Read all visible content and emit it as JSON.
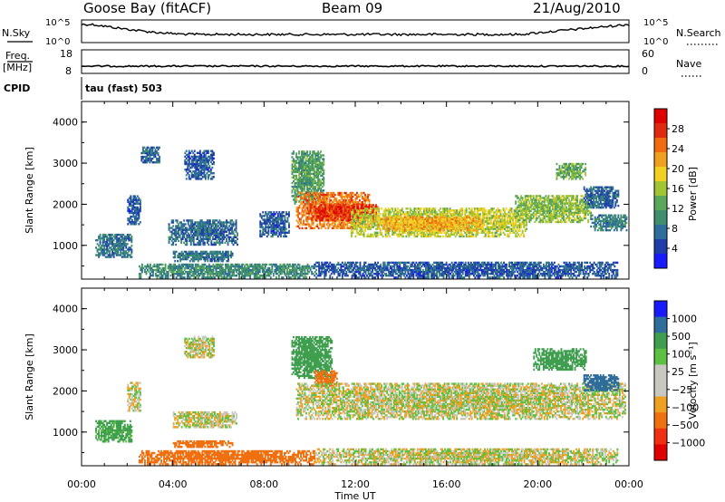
{
  "header": {
    "station": "Goose Bay (fitACF)",
    "beam": "Beam 09",
    "date": "21/Aug/2010"
  },
  "top_panels": {
    "nsky_label": "N.Sky",
    "nsearch_label": "N.Search",
    "nsky_ticks": [
      "10^5",
      "10^0"
    ],
    "nsearch_ticks": [
      "10^5",
      "10^0"
    ],
    "freq_label": "Freq.",
    "freq_unit": "[MHz]",
    "freq_ticks": [
      "18",
      "8"
    ],
    "nave_label": "Nave",
    "nave_ticks": [
      "60",
      "0"
    ],
    "cpid_label": "CPID",
    "cpid_value": "tau (fast) 503"
  },
  "colors": {
    "power_scale": [
      "#1a1aff",
      "#1f3ea8",
      "#2f6d9a",
      "#3f8f6e",
      "#5aa75a",
      "#a0c434",
      "#f0d020",
      "#f0a020",
      "#f06a10",
      "#e02a10",
      "#e00000"
    ],
    "velocity_scale": [
      "#e00000",
      "#f03010",
      "#f07010",
      "#f0a020",
      "#c8c8c0",
      "#c8c8c0",
      "#5cc040",
      "#3f9f4f",
      "#2f6d9a",
      "#1a1aff"
    ]
  },
  "chart_data": [
    {
      "type": "heatmap",
      "name": "power",
      "ylabel": "Slant Range [km]",
      "xlabel": "Time UT",
      "xticks": [
        "00:00",
        "04:00",
        "08:00",
        "12:00",
        "16:00",
        "20:00",
        "00:00"
      ],
      "yticks": [
        "1000",
        "2000",
        "3000",
        "4000"
      ],
      "xlim": [
        0,
        24
      ],
      "ylim": [
        180,
        4500
      ],
      "colorbar": {
        "label": "Power [dB]",
        "ticks": [
          "4",
          "8",
          "12",
          "16",
          "20",
          "24",
          "28"
        ],
        "range": [
          0,
          32
        ]
      },
      "regions": [
        {
          "t0": 0.6,
          "t1": 2.2,
          "r0": 700,
          "r1": 1250,
          "level": 8
        },
        {
          "t0": 2.0,
          "t1": 2.6,
          "r0": 1500,
          "r1": 2200,
          "level": 6
        },
        {
          "t0": 2.6,
          "t1": 3.4,
          "r0": 3000,
          "r1": 3400,
          "level": 7
        },
        {
          "t0": 4.5,
          "t1": 5.8,
          "r0": 2600,
          "r1": 3300,
          "level": 6
        },
        {
          "t0": 3.8,
          "t1": 6.8,
          "r0": 1000,
          "r1": 1600,
          "level": 7
        },
        {
          "t0": 4.0,
          "t1": 6.6,
          "r0": 600,
          "r1": 850,
          "level": 8
        },
        {
          "t0": 2.5,
          "t1": 10.2,
          "r0": 200,
          "r1": 560,
          "level": 10
        },
        {
          "t0": 7.8,
          "t1": 9.1,
          "r0": 1200,
          "r1": 1800,
          "level": 6
        },
        {
          "t0": 9.2,
          "t1": 10.6,
          "r0": 2000,
          "r1": 3300,
          "level": 12
        },
        {
          "t0": 9.4,
          "t1": 12.6,
          "r0": 1400,
          "r1": 2300,
          "level": 24
        },
        {
          "t0": 10.0,
          "t1": 13.0,
          "r0": 1600,
          "r1": 2000,
          "level": 28
        },
        {
          "t0": 11.8,
          "t1": 19.5,
          "r0": 1200,
          "r1": 1900,
          "level": 17
        },
        {
          "t0": 13.0,
          "t1": 17.5,
          "r0": 1350,
          "r1": 1700,
          "level": 21
        },
        {
          "t0": 19.0,
          "t1": 22.3,
          "r0": 1550,
          "r1": 2200,
          "level": 15
        },
        {
          "t0": 22.3,
          "t1": 23.9,
          "r0": 1350,
          "r1": 1750,
          "level": 9
        },
        {
          "t0": 20.8,
          "t1": 22.1,
          "r0": 2600,
          "r1": 3000,
          "level": 13
        },
        {
          "t0": 22.0,
          "t1": 23.5,
          "r0": 1900,
          "r1": 2400,
          "level": 7
        },
        {
          "t0": 10.2,
          "t1": 23.5,
          "r0": 200,
          "r1": 600,
          "level": 6
        }
      ]
    },
    {
      "type": "heatmap",
      "name": "velocity",
      "ylabel": "Slant Range [km]",
      "xlabel": "Time UT",
      "xticks": [
        "00:00",
        "04:00",
        "08:00",
        "12:00",
        "16:00",
        "20:00",
        "00:00"
      ],
      "yticks": [
        "1000",
        "2000",
        "3000",
        "4000"
      ],
      "xlim": [
        0,
        24
      ],
      "ylim": [
        180,
        4500
      ],
      "colorbar": {
        "label": "Velocity [m s⁻¹]",
        "ticks": [
          "1000",
          "500",
          "100",
          "25",
          "−25",
          "−100",
          "−500",
          "−1000"
        ],
        "range": [
          -1200,
          1200
        ]
      },
      "regions": [
        {
          "t0": 0.6,
          "t1": 2.2,
          "r0": 750,
          "r1": 1250,
          "level": 150
        },
        {
          "t0": 2.0,
          "t1": 2.6,
          "r0": 1500,
          "r1": 2200,
          "level": 0
        },
        {
          "t0": 4.5,
          "t1": 5.8,
          "r0": 2800,
          "r1": 3300,
          "level": 0
        },
        {
          "t0": 4.0,
          "t1": 6.8,
          "r0": 1100,
          "r1": 1500,
          "level": 0
        },
        {
          "t0": 4.0,
          "t1": 6.6,
          "r0": 620,
          "r1": 800,
          "level": -400
        },
        {
          "t0": 2.5,
          "t1": 10.2,
          "r0": 200,
          "r1": 560,
          "level": -200
        },
        {
          "t0": 9.2,
          "t1": 11.0,
          "r0": 2300,
          "r1": 3300,
          "level": 200
        },
        {
          "t0": 10.2,
          "t1": 11.2,
          "r0": 2100,
          "r1": 2500,
          "level": -300
        },
        {
          "t0": 9.4,
          "t1": 23.8,
          "r0": 1300,
          "r1": 2200,
          "level": 0
        },
        {
          "t0": 19.8,
          "t1": 22.1,
          "r0": 2500,
          "r1": 3000,
          "level": 200
        },
        {
          "t0": 22.0,
          "t1": 23.5,
          "r0": 2000,
          "r1": 2400,
          "level": 600
        },
        {
          "t0": 10.2,
          "t1": 23.5,
          "r0": 200,
          "r1": 600,
          "level": 0
        }
      ]
    }
  ]
}
